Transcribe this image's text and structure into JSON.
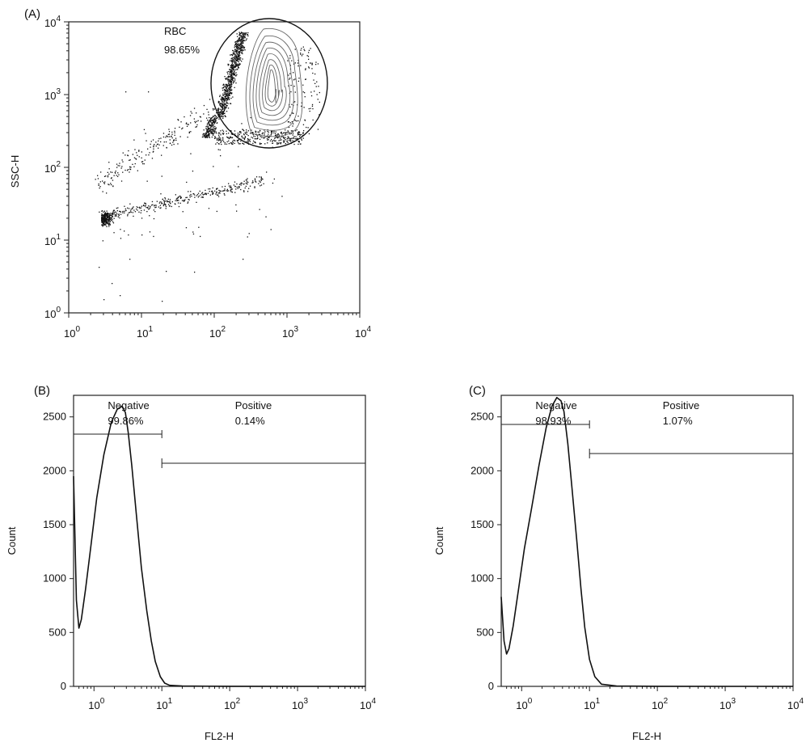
{
  "chart_data": [
    {
      "panel": "(A)",
      "type": "scatter",
      "xlabel": "",
      "ylabel": "SSC-H",
      "x_scale": "log",
      "y_scale": "log",
      "xlim": [
        1,
        10000
      ],
      "ylim": [
        1,
        10000
      ],
      "x_ticks": [
        {
          "base": "10",
          "exp": "0",
          "value": 1
        },
        {
          "base": "10",
          "exp": "1",
          "value": 10
        },
        {
          "base": "10",
          "exp": "2",
          "value": 100
        },
        {
          "base": "10",
          "exp": "3",
          "value": 1000
        },
        {
          "base": "10",
          "exp": "4",
          "value": 10000
        }
      ],
      "y_ticks": [
        {
          "base": "10",
          "exp": "0",
          "value": 1
        },
        {
          "base": "10",
          "exp": "1",
          "value": 10
        },
        {
          "base": "10",
          "exp": "2",
          "value": 100
        },
        {
          "base": "10",
          "exp": "3",
          "value": 1000
        },
        {
          "base": "10",
          "exp": "4",
          "value": 10000
        }
      ],
      "gate": {
        "name": "RBC",
        "percent": "98.65%",
        "center": [
          500,
          1200
        ],
        "shape": "ellipse"
      },
      "clusters": [
        {
          "x": [
            1.5,
            2.5
          ],
          "y": [
            15,
            25
          ],
          "density": "high"
        },
        {
          "x": [
            2,
            300
          ],
          "y": [
            15,
            60
          ],
          "density": "medium"
        },
        {
          "x": [
            2,
            200
          ],
          "y": [
            40,
            350
          ],
          "density": "low"
        },
        {
          "x": [
            150,
            1000
          ],
          "y": [
            200,
            10000
          ],
          "density": "very high"
        }
      ]
    },
    {
      "panel": "(B)",
      "type": "line",
      "xlabel": "FL2-H",
      "ylabel": "Count",
      "x_scale": "log",
      "xlim": [
        0.5,
        10000
      ],
      "ylim": [
        0,
        2700
      ],
      "x_ticks": [
        {
          "base": "10",
          "exp": "0",
          "value": 1
        },
        {
          "base": "10",
          "exp": "1",
          "value": 10
        },
        {
          "base": "10",
          "exp": "2",
          "value": 100
        },
        {
          "base": "10",
          "exp": "3",
          "value": 1000
        },
        {
          "base": "10",
          "exp": "4",
          "value": 10000
        }
      ],
      "y_ticks": [
        "0",
        "500",
        "1000",
        "1500",
        "2000",
        "2500"
      ],
      "x": [
        0.5,
        0.55,
        0.6,
        0.65,
        0.75,
        0.9,
        1.1,
        1.4,
        1.8,
        2.2,
        2.6,
        2.9,
        3.2,
        3.6,
        4.2,
        5,
        6,
        7,
        8,
        9.5,
        11,
        13,
        20,
        100,
        1000,
        10000
      ],
      "y": [
        1950,
        800,
        540,
        620,
        900,
        1300,
        1750,
        2150,
        2450,
        2570,
        2600,
        2540,
        2350,
        2050,
        1600,
        1100,
        700,
        420,
        230,
        90,
        30,
        10,
        3,
        1,
        0,
        0
      ],
      "gates": [
        {
          "name": "Negative",
          "percent": "99.86%",
          "x_range": [
            0.5,
            10
          ],
          "y_level": 2340
        },
        {
          "name": "Positive",
          "percent": "0.14%",
          "x_range": [
            10,
            10000
          ],
          "y_level": 2070
        }
      ]
    },
    {
      "panel": "(C)",
      "type": "line",
      "xlabel": "FL2-H",
      "ylabel": "Count",
      "x_scale": "log",
      "xlim": [
        0.5,
        10000
      ],
      "ylim": [
        0,
        2700
      ],
      "x_ticks": [
        {
          "base": "10",
          "exp": "0",
          "value": 1
        },
        {
          "base": "10",
          "exp": "1",
          "value": 10
        },
        {
          "base": "10",
          "exp": "2",
          "value": 100
        },
        {
          "base": "10",
          "exp": "3",
          "value": 1000
        },
        {
          "base": "10",
          "exp": "4",
          "value": 10000
        }
      ],
      "y_ticks": [
        "0",
        "500",
        "1000",
        "1500",
        "2000",
        "2500"
      ],
      "x": [
        0.5,
        0.55,
        0.6,
        0.65,
        0.75,
        0.9,
        1.1,
        1.4,
        1.8,
        2.3,
        2.8,
        3.3,
        3.8,
        4.2,
        4.8,
        5.5,
        6.5,
        7.5,
        8.5,
        10,
        12,
        15,
        25,
        100,
        1000,
        10000
      ],
      "y": [
        830,
        420,
        300,
        350,
        560,
        900,
        1280,
        1650,
        2050,
        2400,
        2600,
        2680,
        2650,
        2550,
        2250,
        1850,
        1350,
        900,
        550,
        250,
        90,
        20,
        4,
        1,
        0,
        0
      ],
      "gates": [
        {
          "name": "Negative",
          "percent": "98.93%",
          "x_range": [
            0.5,
            10
          ],
          "y_level": 2430
        },
        {
          "name": "Positive",
          "percent": "1.07%",
          "x_range": [
            10,
            10000
          ],
          "y_level": 2160
        }
      ]
    }
  ]
}
